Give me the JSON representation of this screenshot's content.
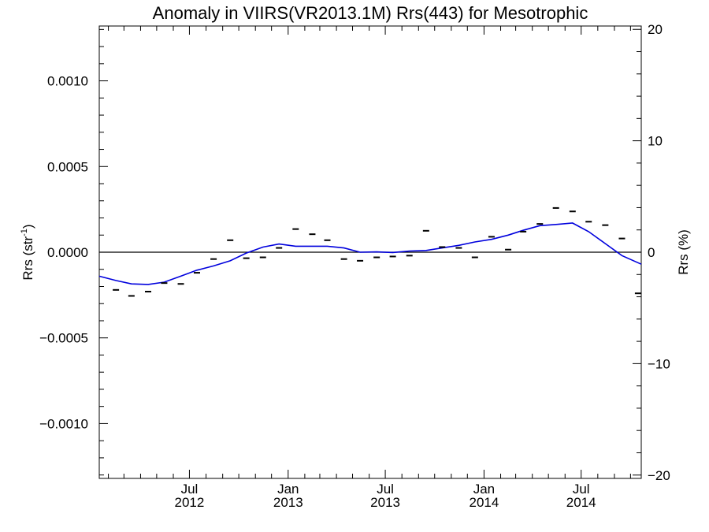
{
  "chart_data": {
    "type": "scatter",
    "title": "Anomaly in VIIRS(VR2013.1M) Rrs(443) for Mesotrophic",
    "ylabel_left": {
      "base": "Rrs (str",
      "sup": "-1",
      "tail": ")"
    },
    "ylabel_right": "Rrs (%)",
    "ylim_left": [
      -0.00132,
      0.00132
    ],
    "ylim_right": [
      -20.3,
      20.3
    ],
    "left_ticks": [
      {
        "value": 0.001,
        "label": "0.0010"
      },
      {
        "value": 0.0005,
        "label": "0.0005"
      },
      {
        "value": 0.0,
        "label": "0.0000"
      },
      {
        "value": -0.0005,
        "label": "−0.0005"
      },
      {
        "value": -0.001,
        "label": "−0.0010"
      }
    ],
    "right_ticks": [
      {
        "value": 20,
        "label": "20"
      },
      {
        "value": 10,
        "label": "10"
      },
      {
        "value": 0,
        "label": "0"
      },
      {
        "value": -10,
        "label": "−10"
      },
      {
        "value": -20,
        "label": "−20"
      }
    ],
    "xlim": [
      "2012-01-15",
      "2014-10-21"
    ],
    "x_ticks": [
      {
        "date": "2012-07-01",
        "line1": "Jul",
        "line2": "2012"
      },
      {
        "date": "2013-01-01",
        "line1": "Jan",
        "line2": "2013"
      },
      {
        "date": "2013-07-01",
        "line1": "Jul",
        "line2": "2013"
      },
      {
        "date": "2014-01-01",
        "line1": "Jan",
        "line2": "2014"
      },
      {
        "date": "2014-07-01",
        "line1": "Jul",
        "line2": "2014"
      }
    ],
    "series": [
      {
        "kind": "markers",
        "color": "#000000",
        "points": [
          {
            "x": "2012-02-15",
            "y": -0.00022
          },
          {
            "x": "2012-03-15",
            "y": -0.000255
          },
          {
            "x": "2012-04-15",
            "y": -0.00023
          },
          {
            "x": "2012-05-15",
            "y": -0.00018
          },
          {
            "x": "2012-06-15",
            "y": -0.000185
          },
          {
            "x": "2012-07-15",
            "y": -0.00012
          },
          {
            "x": "2012-08-15",
            "y": -4e-05
          },
          {
            "x": "2012-09-15",
            "y": 7e-05
          },
          {
            "x": "2012-10-15",
            "y": -3.5e-05
          },
          {
            "x": "2012-11-15",
            "y": -3e-05
          },
          {
            "x": "2012-12-15",
            "y": 2.5e-05
          },
          {
            "x": "2013-01-15",
            "y": 0.000135
          },
          {
            "x": "2013-02-15",
            "y": 0.000105
          },
          {
            "x": "2013-03-15",
            "y": 7e-05
          },
          {
            "x": "2013-04-15",
            "y": -4e-05
          },
          {
            "x": "2013-05-15",
            "y": -5e-05
          },
          {
            "x": "2013-06-15",
            "y": -3e-05
          },
          {
            "x": "2013-07-15",
            "y": -2.5e-05
          },
          {
            "x": "2013-08-15",
            "y": -2e-05
          },
          {
            "x": "2013-09-15",
            "y": 0.000125
          },
          {
            "x": "2013-10-15",
            "y": 3e-05
          },
          {
            "x": "2013-11-15",
            "y": 2.5e-05
          },
          {
            "x": "2013-12-15",
            "y": -3e-05
          },
          {
            "x": "2014-01-15",
            "y": 9e-05
          },
          {
            "x": "2014-02-15",
            "y": 1.5e-05
          },
          {
            "x": "2014-03-15",
            "y": 0.00012
          },
          {
            "x": "2014-04-15",
            "y": 0.000165
          },
          {
            "x": "2014-05-15",
            "y": 0.000258
          },
          {
            "x": "2014-06-15",
            "y": 0.000238
          },
          {
            "x": "2014-07-15",
            "y": 0.000178
          },
          {
            "x": "2014-08-15",
            "y": 0.000158
          },
          {
            "x": "2014-09-15",
            "y": 8e-05
          },
          {
            "x": "2014-10-15",
            "y": -0.00024
          }
        ]
      },
      {
        "kind": "line",
        "color": "#0000dd",
        "points": [
          {
            "x": "2012-01-15",
            "y": -0.00014
          },
          {
            "x": "2012-02-15",
            "y": -0.000165
          },
          {
            "x": "2012-03-15",
            "y": -0.000185
          },
          {
            "x": "2012-04-15",
            "y": -0.000188
          },
          {
            "x": "2012-05-15",
            "y": -0.000175
          },
          {
            "x": "2012-06-15",
            "y": -0.00014
          },
          {
            "x": "2012-07-15",
            "y": -0.000105
          },
          {
            "x": "2012-08-15",
            "y": -8e-05
          },
          {
            "x": "2012-09-15",
            "y": -5e-05
          },
          {
            "x": "2012-10-15",
            "y": -5e-06
          },
          {
            "x": "2012-11-15",
            "y": 3e-05
          },
          {
            "x": "2012-12-15",
            "y": 4.8e-05
          },
          {
            "x": "2013-01-15",
            "y": 3.5e-05
          },
          {
            "x": "2013-02-15",
            "y": 3.5e-05
          },
          {
            "x": "2013-03-15",
            "y": 3.5e-05
          },
          {
            "x": "2013-04-15",
            "y": 2.5e-05
          },
          {
            "x": "2013-05-15",
            "y": 0.0
          },
          {
            "x": "2013-06-15",
            "y": 2e-06
          },
          {
            "x": "2013-07-15",
            "y": -2e-06
          },
          {
            "x": "2013-08-15",
            "y": 7e-06
          },
          {
            "x": "2013-09-15",
            "y": 1e-05
          },
          {
            "x": "2013-10-15",
            "y": 2.5e-05
          },
          {
            "x": "2013-11-15",
            "y": 4e-05
          },
          {
            "x": "2013-12-15",
            "y": 6e-05
          },
          {
            "x": "2014-01-15",
            "y": 7.5e-05
          },
          {
            "x": "2014-02-15",
            "y": 0.0001
          },
          {
            "x": "2014-03-15",
            "y": 0.000128
          },
          {
            "x": "2014-04-15",
            "y": 0.000155
          },
          {
            "x": "2014-05-15",
            "y": 0.000162
          },
          {
            "x": "2014-06-15",
            "y": 0.00017
          },
          {
            "x": "2014-07-15",
            "y": 0.00012
          },
          {
            "x": "2014-08-15",
            "y": 5e-05
          },
          {
            "x": "2014-09-15",
            "y": -2e-05
          },
          {
            "x": "2014-10-21",
            "y": -7e-05
          }
        ]
      }
    ],
    "zero_line": true,
    "grid": false
  }
}
